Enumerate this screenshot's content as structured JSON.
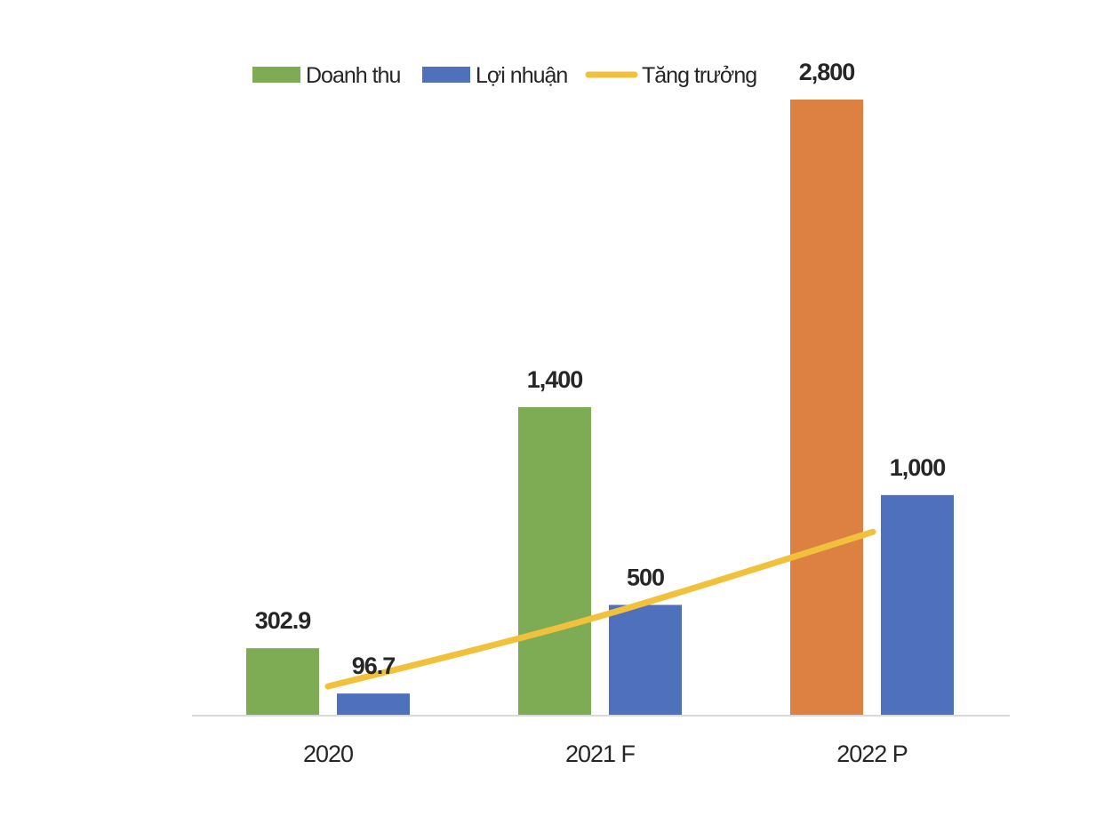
{
  "chart_data": {
    "type": "bar",
    "categories": [
      "2020",
      "2021 F",
      "2022 P"
    ],
    "series": [
      {
        "name": "Doanh thu",
        "values": [
          302.9,
          1400,
          2800
        ],
        "labels": [
          "302.9",
          "1,400",
          "2,800"
        ],
        "colors": [
          "#7EAC55",
          "#7EAC55",
          "#DD8143"
        ]
      },
      {
        "name": "Lợi nhuận",
        "values": [
          96.7,
          500,
          1000
        ],
        "labels": [
          "96.7",
          "500",
          "1,000"
        ],
        "colors": [
          "#4E70BD",
          "#4E70BD",
          "#4E70BD"
        ]
      }
    ],
    "line": {
      "name": "Tăng trưởng",
      "type": "line",
      "color": "#F2C13C",
      "values": [
        96.7,
        400,
        800
      ]
    },
    "legend": {
      "position": "top",
      "entries": [
        {
          "label": "Doanh thu",
          "color": "#7EAC55",
          "marker": "rect"
        },
        {
          "label": "Lợi nhuận",
          "color": "#4E70BD",
          "marker": "rect"
        },
        {
          "label": "Tăng trưởng",
          "color": "#F2C13C",
          "marker": "line"
        }
      ]
    },
    "title": "",
    "xlabel": "",
    "ylabel": "",
    "ylim": [
      0,
      2800
    ],
    "grid": false,
    "axis_color": "#D9D9D9"
  }
}
